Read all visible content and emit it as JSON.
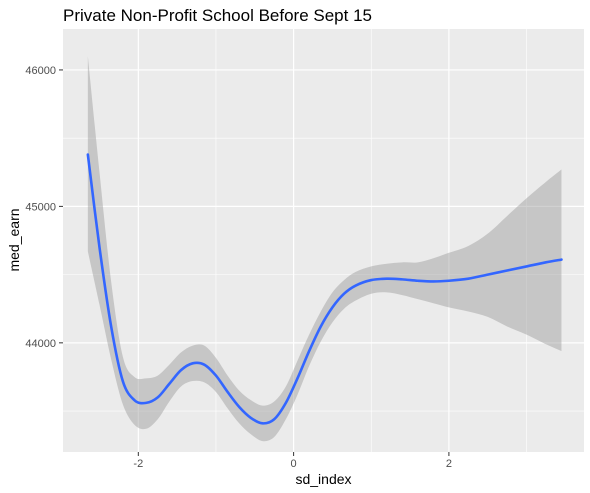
{
  "chart_data": {
    "type": "line",
    "title": "Private Non-Profit School Before Sept 15",
    "xlabel": "sd_index",
    "ylabel": "med_earn",
    "xlim": [
      -2.97,
      3.74
    ],
    "ylim": [
      43200,
      46300
    ],
    "x_ticks": [
      -2,
      0,
      2
    ],
    "y_ticks": [
      44000,
      45000,
      46000
    ],
    "grid": true,
    "legend": "none",
    "series": [
      {
        "color": "#3366FF",
        "band_color": "#999999",
        "points": [
          {
            "x": -2.65,
            "y": 45380,
            "lo": 44670,
            "hi": 46100
          },
          {
            "x": -2.5,
            "y": 44700,
            "lo": 44280,
            "hi": 45250
          },
          {
            "x": -2.35,
            "y": 44120,
            "lo": 43880,
            "hi": 44450
          },
          {
            "x": -2.2,
            "y": 43720,
            "lo": 43550,
            "hi": 43900
          },
          {
            "x": -2.05,
            "y": 43580,
            "lo": 43400,
            "hi": 43750
          },
          {
            "x": -1.9,
            "y": 43560,
            "lo": 43370,
            "hi": 43740
          },
          {
            "x": -1.75,
            "y": 43600,
            "lo": 43440,
            "hi": 43760
          },
          {
            "x": -1.6,
            "y": 43700,
            "lo": 43570,
            "hi": 43840
          },
          {
            "x": -1.45,
            "y": 43800,
            "lo": 43680,
            "hi": 43930
          },
          {
            "x": -1.3,
            "y": 43850,
            "lo": 43720,
            "hi": 43980
          },
          {
            "x": -1.15,
            "y": 43840,
            "lo": 43710,
            "hi": 43980
          },
          {
            "x": -1.0,
            "y": 43760,
            "lo": 43640,
            "hi": 43890
          },
          {
            "x": -0.85,
            "y": 43640,
            "lo": 43520,
            "hi": 43760
          },
          {
            "x": -0.7,
            "y": 43530,
            "lo": 43410,
            "hi": 43650
          },
          {
            "x": -0.55,
            "y": 43450,
            "lo": 43330,
            "hi": 43580
          },
          {
            "x": -0.4,
            "y": 43410,
            "lo": 43280,
            "hi": 43540
          },
          {
            "x": -0.25,
            "y": 43440,
            "lo": 43310,
            "hi": 43570
          },
          {
            "x": -0.1,
            "y": 43560,
            "lo": 43440,
            "hi": 43680
          },
          {
            "x": 0.05,
            "y": 43740,
            "lo": 43620,
            "hi": 43870
          },
          {
            "x": 0.2,
            "y": 43940,
            "lo": 43830,
            "hi": 44060
          },
          {
            "x": 0.35,
            "y": 44120,
            "lo": 44010,
            "hi": 44230
          },
          {
            "x": 0.5,
            "y": 44260,
            "lo": 44150,
            "hi": 44370
          },
          {
            "x": 0.65,
            "y": 44360,
            "lo": 44250,
            "hi": 44460
          },
          {
            "x": 0.8,
            "y": 44420,
            "lo": 44310,
            "hi": 44520
          },
          {
            "x": 1.0,
            "y": 44460,
            "lo": 44360,
            "hi": 44560
          },
          {
            "x": 1.2,
            "y": 44470,
            "lo": 44370,
            "hi": 44580
          },
          {
            "x": 1.4,
            "y": 44465,
            "lo": 44350,
            "hi": 44590
          },
          {
            "x": 1.6,
            "y": 44455,
            "lo": 44320,
            "hi": 44590
          },
          {
            "x": 1.8,
            "y": 44450,
            "lo": 44290,
            "hi": 44620
          },
          {
            "x": 2.0,
            "y": 44455,
            "lo": 44260,
            "hi": 44660
          },
          {
            "x": 2.25,
            "y": 44470,
            "lo": 44230,
            "hi": 44710
          },
          {
            "x": 2.5,
            "y": 44500,
            "lo": 44190,
            "hi": 44800
          },
          {
            "x": 2.75,
            "y": 44530,
            "lo": 44120,
            "hi": 44930
          },
          {
            "x": 3.0,
            "y": 44560,
            "lo": 44060,
            "hi": 45060
          },
          {
            "x": 3.25,
            "y": 44590,
            "lo": 43990,
            "hi": 45180
          },
          {
            "x": 3.45,
            "y": 44610,
            "lo": 43940,
            "hi": 45270
          }
        ]
      }
    ]
  }
}
